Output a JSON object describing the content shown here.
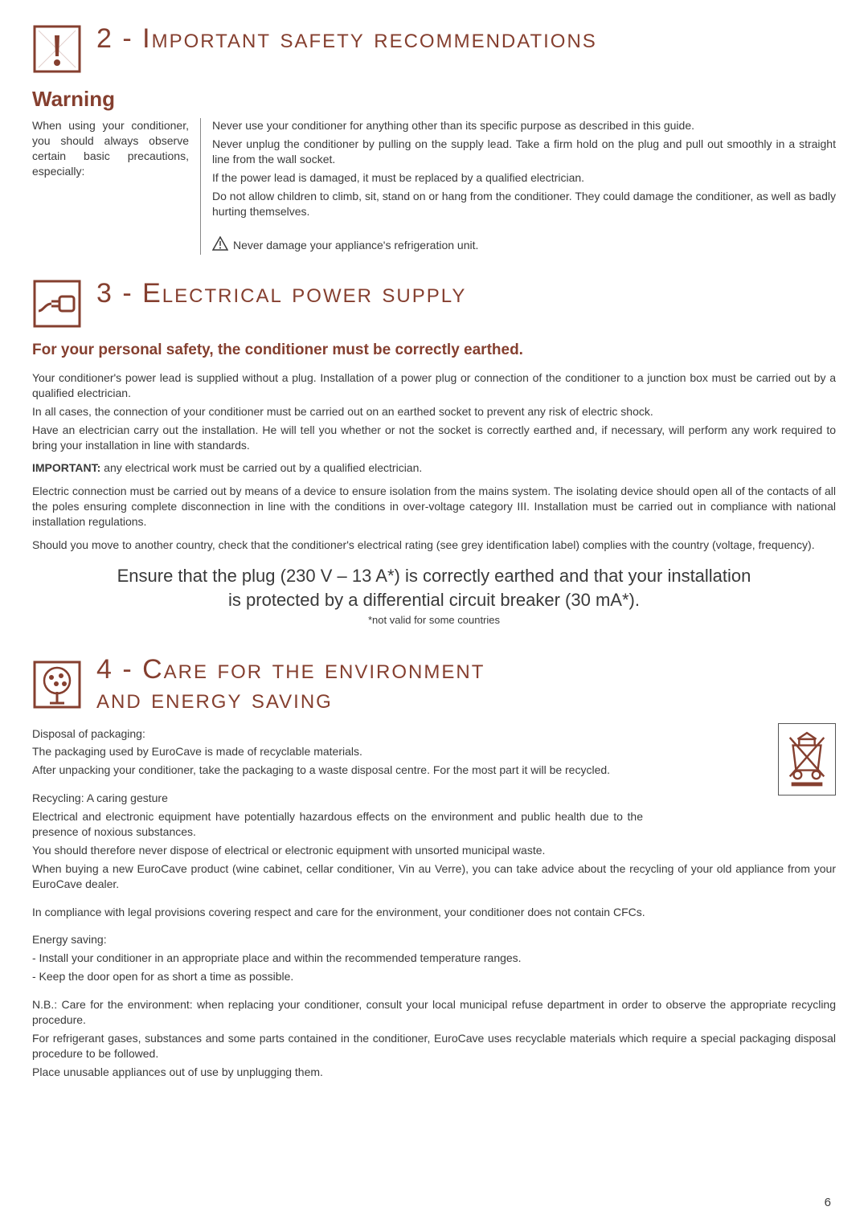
{
  "colors": {
    "accent": "#853f2f",
    "text": "#3a3a3a",
    "rule": "#888888"
  },
  "page_number": "6",
  "section2": {
    "title": "2 - Important safety recommendations",
    "warning_heading": "Warning",
    "intro": "When using your conditioner, you should always observe certain basic precautions, especially:",
    "points": [
      "Never use your conditioner for anything other than its specific purpose as described in this guide.",
      "Never unplug the conditioner by pulling on the supply lead. Take a firm hold on the plug and pull out smoothly in a straight line from the wall socket.",
      "If the power lead is damaged, it must be replaced by a qualified electrician.",
      "Do not allow children to climb, sit, stand on or hang from the conditioner. They could damage the conditioner, as well as badly hurting themselves."
    ],
    "caution": "Never damage your appliance's refrigeration unit."
  },
  "section3": {
    "title": "3 - Electrical power supply",
    "subheading": "For your personal safety, the conditioner must be correctly earthed.",
    "p1": "Your conditioner's power lead is supplied without a plug. Installation of a power plug or connection of the conditioner to a junction box must be carried out by a qualified electrician.",
    "p2": "In all cases, the connection of your conditioner must be carried out on an earthed socket to prevent any risk of electric shock.",
    "p3": "Have an electrician carry out the installation. He will tell you whether or not the socket is correctly earthed and, if necessary, will perform any work required to bring your installation in line with standards.",
    "important_label": "IMPORTANT:",
    "important_text": " any electrical work must be carried out by a qualified electrician.",
    "p4": "Electric connection must be carried out by means of a device to ensure isolation from the mains system. The isolating device should open all of the contacts of all the poles ensuring complete disconnection in line with the conditions in over-voltage category III. Installation must be carried out in compliance with national installation regulations.",
    "p5": "Should you move to another country, check that the conditioner's electrical rating (see grey identification label) complies with the country (voltage, frequency).",
    "big1": "Ensure that the plug (230 V – 13 A*) is correctly earthed and that your installation",
    "big2": "is protected by a differential circuit breaker (30 mA*).",
    "note": "*not valid for some countries"
  },
  "section4": {
    "title_line1": "4 - Care for the environment",
    "title_line2": "and energy saving",
    "disposal_h": "Disposal of packaging:",
    "disposal_1": "The packaging used by EuroCave is made of recyclable materials.",
    "disposal_2": "After unpacking your conditioner, take the packaging to a waste disposal centre. For the most part it will be recycled.",
    "recycle_h": "Recycling: A caring gesture",
    "recycle_1": "Electrical and electronic equipment have potentially hazardous effects on the environment and public health due to the presence of noxious substances.",
    "recycle_2": "You should therefore never dispose of electrical or electronic equipment with unsorted municipal waste.",
    "recycle_3": "When buying a new EuroCave product (wine cabinet, cellar conditioner, Vin au Verre), you can take advice about the recycling of your old appliance from your EuroCave dealer.",
    "cfc": "In compliance with legal provisions covering respect and care for the environment, your conditioner does not contain CFCs.",
    "energy_h": "Energy saving:",
    "energy_1": "- Install your conditioner in an appropriate place and within the recommended temperature ranges.",
    "energy_2": "- Keep the door open for as short a time as possible.",
    "nb_1": "N.B.: Care for the environment: when replacing your conditioner, consult your local municipal refuse department in order to observe the appropriate recycling procedure.",
    "nb_2": "For refrigerant gases, substances and some parts contained in the conditioner, EuroCave uses recyclable materials which require a special packaging disposal procedure to be followed.",
    "nb_3": "Place unusable appliances out of use by unplugging them."
  }
}
